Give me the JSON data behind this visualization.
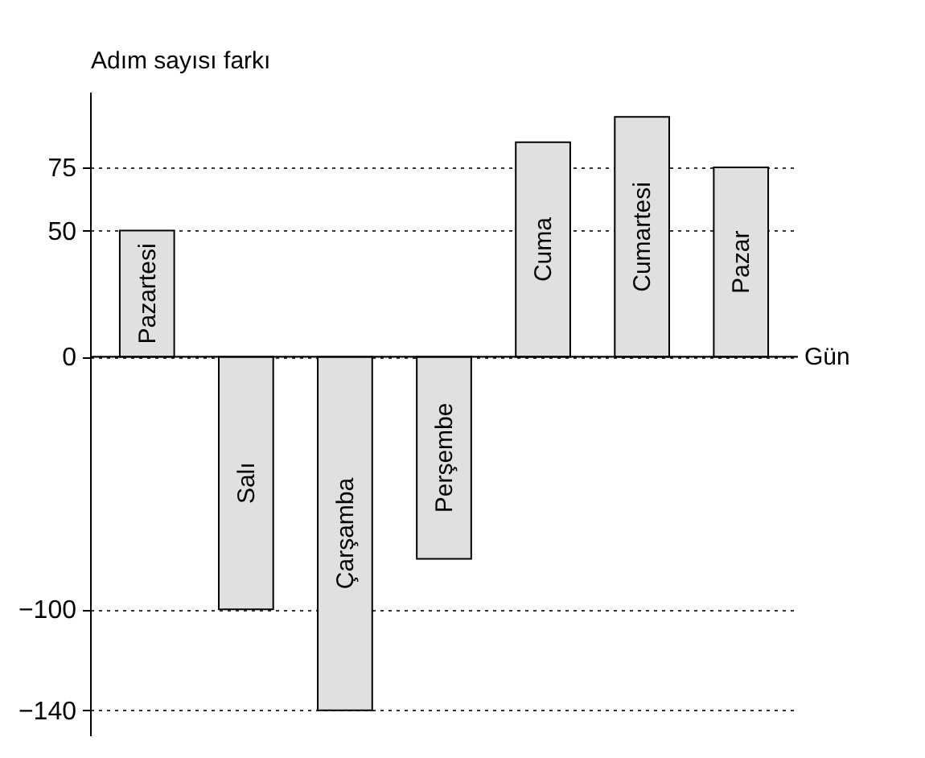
{
  "chart_data": {
    "type": "bar",
    "ylabel": "Adım sayısı farkı",
    "xlabel": "Gün",
    "categories": [
      "Pazartesi",
      "Salı",
      "Çarşamba",
      "Perşembe",
      "Cuma",
      "Cumartesi",
      "Pazar"
    ],
    "values": [
      50,
      -100,
      -140,
      -80,
      85,
      95,
      75
    ],
    "color": "#e0e0e0",
    "ylim": [
      -150,
      105
    ],
    "yticks": [
      -140,
      -100,
      0,
      50,
      75
    ],
    "grid": "y"
  }
}
